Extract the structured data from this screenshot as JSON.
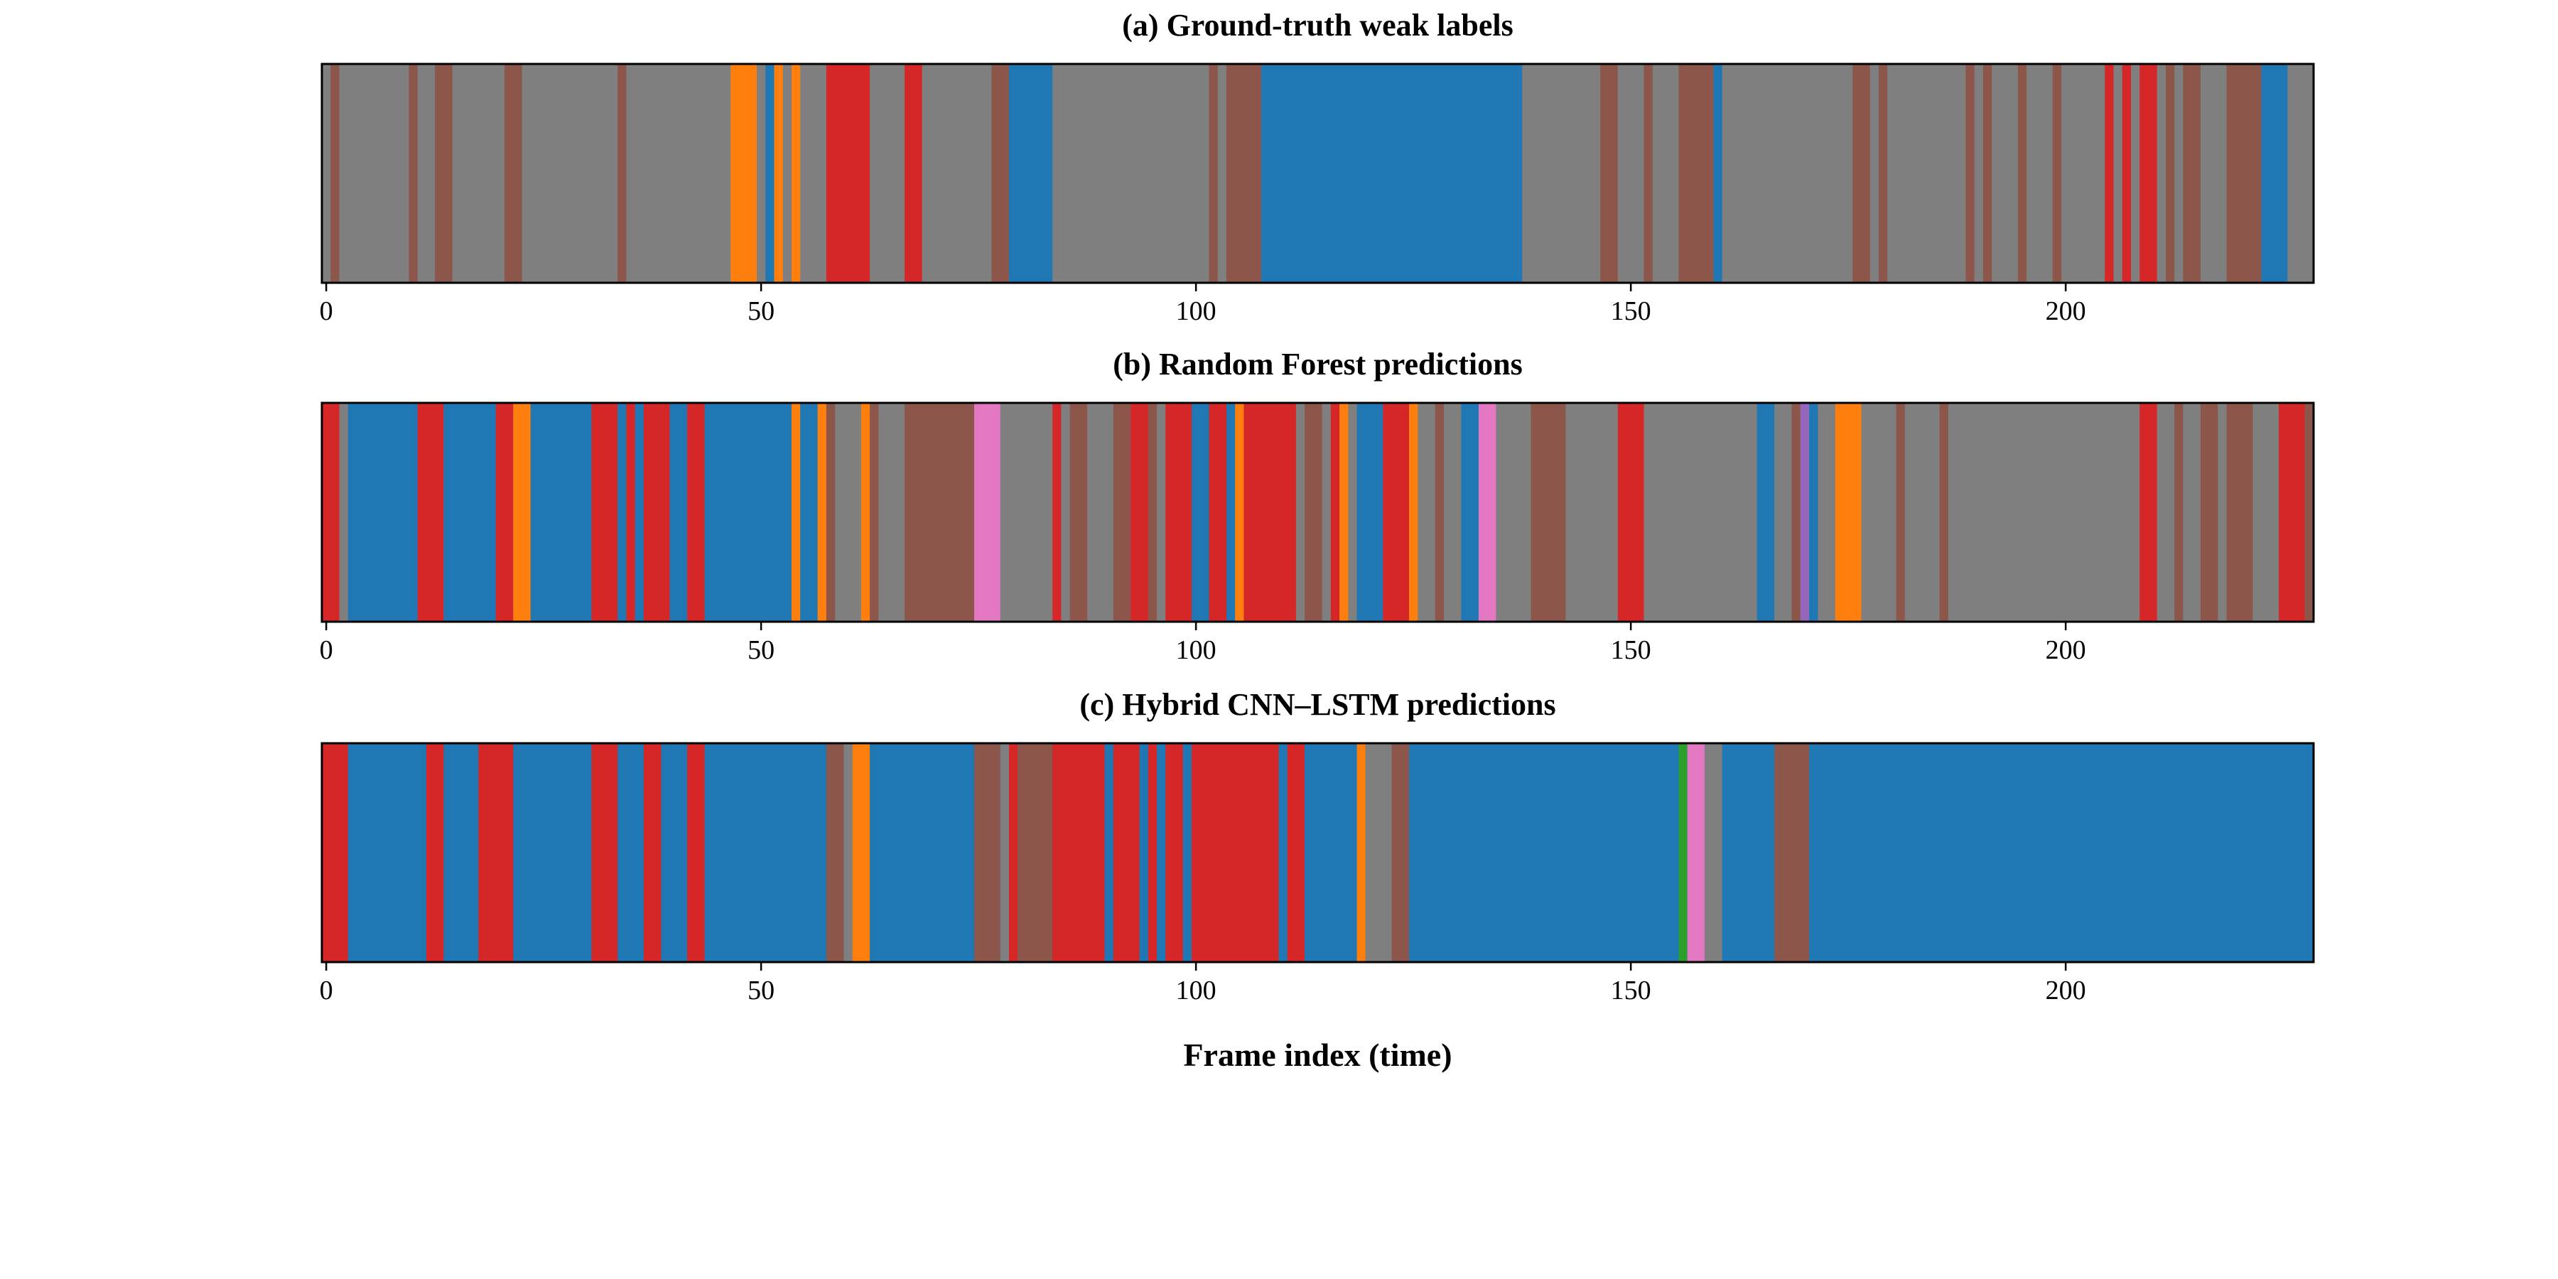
{
  "chart_data": {
    "type": "timeline",
    "x_range": [
      -0.5,
      228.5
    ],
    "xticks": [
      0,
      50,
      100,
      150,
      200
    ],
    "xlabel": "Frame index (time)",
    "colors": {
      "blue": "#1f77b4",
      "orange": "#ff7f0e",
      "green": "#2ca02c",
      "red": "#d62728",
      "purple": "#9467bd",
      "brown": "#8c564b",
      "pink": "#e377c2",
      "gray": "#7f7f7f"
    },
    "panels": [
      {
        "title": "(a)  Ground-truth weak labels",
        "segments": [
          [
            0,
            229,
            "gray"
          ],
          [
            1,
            2,
            "brown"
          ],
          [
            10,
            11,
            "brown"
          ],
          [
            13,
            15,
            "brown"
          ],
          [
            21,
            23,
            "brown"
          ],
          [
            34,
            35,
            "brown"
          ],
          [
            47,
            50,
            "orange"
          ],
          [
            51,
            52,
            "blue"
          ],
          [
            52,
            53,
            "orange"
          ],
          [
            54,
            55,
            "orange"
          ],
          [
            58,
            63,
            "red"
          ],
          [
            67,
            69,
            "red"
          ],
          [
            77,
            79,
            "brown"
          ],
          [
            79,
            84,
            "blue"
          ],
          [
            102,
            103,
            "brown"
          ],
          [
            104,
            108,
            "brown"
          ],
          [
            108,
            138,
            "blue"
          ],
          [
            147,
            149,
            "brown"
          ],
          [
            152,
            153,
            "brown"
          ],
          [
            156,
            160,
            "brown"
          ],
          [
            160,
            161,
            "blue"
          ],
          [
            176,
            178,
            "brown"
          ],
          [
            179,
            180,
            "brown"
          ],
          [
            189,
            190,
            "brown"
          ],
          [
            191,
            192,
            "brown"
          ],
          [
            195,
            196,
            "brown"
          ],
          [
            199,
            200,
            "brown"
          ],
          [
            205,
            206,
            "red"
          ],
          [
            207,
            208,
            "red"
          ],
          [
            209,
            211,
            "red"
          ],
          [
            212,
            213,
            "brown"
          ],
          [
            214,
            216,
            "brown"
          ],
          [
            219,
            223,
            "brown"
          ],
          [
            223,
            226,
            "blue"
          ]
        ]
      },
      {
        "title": "(b)  Random Forest predictions",
        "segments": [
          [
            0,
            229,
            "gray"
          ],
          [
            0,
            2,
            "red"
          ],
          [
            3,
            11,
            "blue"
          ],
          [
            11,
            14,
            "red"
          ],
          [
            14,
            20,
            "blue"
          ],
          [
            20,
            22,
            "red"
          ],
          [
            22,
            24,
            "orange"
          ],
          [
            24,
            31,
            "blue"
          ],
          [
            31,
            34,
            "red"
          ],
          [
            34,
            35,
            "blue"
          ],
          [
            35,
            36,
            "red"
          ],
          [
            36,
            37,
            "blue"
          ],
          [
            37,
            40,
            "red"
          ],
          [
            40,
            42,
            "blue"
          ],
          [
            42,
            44,
            "red"
          ],
          [
            44,
            54,
            "blue"
          ],
          [
            54,
            55,
            "orange"
          ],
          [
            55,
            57,
            "blue"
          ],
          [
            57,
            58,
            "orange"
          ],
          [
            58,
            59,
            "brown"
          ],
          [
            62,
            63,
            "orange"
          ],
          [
            63,
            64,
            "brown"
          ],
          [
            67,
            75,
            "brown"
          ],
          [
            75,
            78,
            "pink"
          ],
          [
            84,
            85,
            "red"
          ],
          [
            86,
            88,
            "brown"
          ],
          [
            91,
            93,
            "brown"
          ],
          [
            93,
            95,
            "red"
          ],
          [
            95,
            96,
            "brown"
          ],
          [
            97,
            100,
            "red"
          ],
          [
            100,
            102,
            "blue"
          ],
          [
            102,
            104,
            "red"
          ],
          [
            104,
            105,
            "blue"
          ],
          [
            105,
            106,
            "orange"
          ],
          [
            106,
            112,
            "red"
          ],
          [
            113,
            115,
            "brown"
          ],
          [
            116,
            117,
            "red"
          ],
          [
            117,
            118,
            "orange"
          ],
          [
            119,
            122,
            "blue"
          ],
          [
            122,
            125,
            "red"
          ],
          [
            125,
            126,
            "orange"
          ],
          [
            128,
            129,
            "brown"
          ],
          [
            131,
            133,
            "blue"
          ],
          [
            133,
            135,
            "pink"
          ],
          [
            139,
            143,
            "brown"
          ],
          [
            149,
            152,
            "red"
          ],
          [
            165,
            167,
            "blue"
          ],
          [
            169,
            170,
            "brown"
          ],
          [
            170,
            171,
            "purple"
          ],
          [
            171,
            172,
            "blue"
          ],
          [
            174,
            177,
            "orange"
          ],
          [
            181,
            182,
            "brown"
          ],
          [
            186,
            187,
            "brown"
          ],
          [
            209,
            211,
            "red"
          ],
          [
            213,
            214,
            "brown"
          ],
          [
            216,
            218,
            "brown"
          ],
          [
            219,
            222,
            "brown"
          ],
          [
            225,
            228,
            "red"
          ],
          [
            228,
            229,
            "brown"
          ]
        ]
      },
      {
        "title": "(c)  Hybrid CNN–LSTM predictions",
        "segments": [
          [
            0,
            229,
            "blue"
          ],
          [
            0,
            3,
            "red"
          ],
          [
            12,
            14,
            "red"
          ],
          [
            18,
            22,
            "red"
          ],
          [
            31,
            34,
            "red"
          ],
          [
            37,
            39,
            "red"
          ],
          [
            42,
            44,
            "red"
          ],
          [
            58,
            60,
            "brown"
          ],
          [
            60,
            61,
            "gray"
          ],
          [
            61,
            63,
            "orange"
          ],
          [
            75,
            78,
            "brown"
          ],
          [
            78,
            79,
            "gray"
          ],
          [
            79,
            80,
            "red"
          ],
          [
            80,
            84,
            "brown"
          ],
          [
            84,
            90,
            "red"
          ],
          [
            91,
            94,
            "red"
          ],
          [
            95,
            96,
            "red"
          ],
          [
            97,
            99,
            "red"
          ],
          [
            100,
            110,
            "red"
          ],
          [
            111,
            113,
            "red"
          ],
          [
            119,
            120,
            "orange"
          ],
          [
            120,
            123,
            "gray"
          ],
          [
            123,
            125,
            "brown"
          ],
          [
            156,
            157,
            "green"
          ],
          [
            157,
            159,
            "pink"
          ],
          [
            159,
            161,
            "gray"
          ],
          [
            167,
            171,
            "brown"
          ]
        ]
      }
    ]
  }
}
